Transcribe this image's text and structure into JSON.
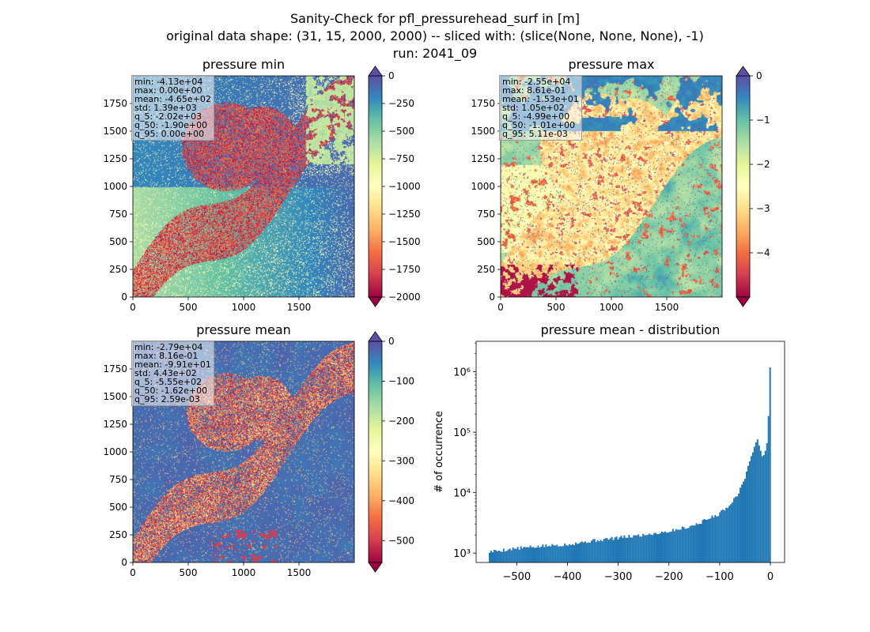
{
  "suptitle": {
    "line1": "Sanity-Check for pfl_pressurehead_surf in [m]",
    "line2": "original data shape: (31, 15, 2000, 2000) -- sliced with: (slice(None, None, None), -1)",
    "line3": "run: 2041_09"
  },
  "colors": {
    "spectral": [
      "#9e0142",
      "#d53e4f",
      "#f46d43",
      "#fdae61",
      "#fee08b",
      "#ffffbf",
      "#e6f598",
      "#abdda4",
      "#66c2a5",
      "#3288bd",
      "#5e4fa2"
    ],
    "hist_bar": "#1f77b4"
  },
  "panels": {
    "min": {
      "title": "pressure min",
      "stats": [
        "min: -4.13e+04",
        "max: 0.00e+00",
        "mean: -4.65e+02",
        "std: 1.39e+03",
        "q_5: -2.02e+03",
        "q_50: -1.90e+00",
        "q_95: 0.00e+00"
      ],
      "colorbar": {
        "vmin": -2000,
        "vmax": 0,
        "ticks": [
          0,
          -250,
          -500,
          -750,
          -1000,
          -1250,
          -1500,
          -1750,
          -2000
        ],
        "tick_labels": [
          "0",
          "−250",
          "−500",
          "−750",
          "−1000",
          "−1250",
          "−1500",
          "−1750",
          "−2000"
        ]
      }
    },
    "max": {
      "title": "pressure max",
      "stats": [
        "min: -2.55e+04",
        "max: 8.61e-01",
        "mean: -1.53e+01",
        "std: 1.05e+02",
        "q_5: -4.99e+00",
        "q_50: -1.01e+00",
        "q_95: 5.11e-03"
      ],
      "colorbar": {
        "vmin": -5,
        "vmax": 0,
        "ticks": [
          0,
          -1,
          -2,
          -3,
          -4
        ],
        "tick_labels": [
          "0",
          "−1",
          "−2",
          "−3",
          "−4"
        ]
      }
    },
    "mean": {
      "title": "pressure mean",
      "stats": [
        "min: -2.79e+04",
        "max: 8.16e-01",
        "mean: -9.91e+01",
        "std: 4.43e+02",
        "q_5: -5.55e+02",
        "q_50: -1.62e+00",
        "q_95: 2.59e-03"
      ],
      "colorbar": {
        "vmin": -555,
        "vmax": 0,
        "ticks": [
          0,
          -100,
          -200,
          -300,
          -400,
          -500
        ],
        "tick_labels": [
          "0",
          "−100",
          "−200",
          "−300",
          "−400",
          "−500"
        ]
      }
    },
    "hist": {
      "title": "pressure mean - distribution",
      "ylabel": "# of occurrence"
    }
  },
  "map_axes": {
    "xlim": [
      0,
      2000
    ],
    "ylim": [
      0,
      2000
    ],
    "xticks": [
      0,
      500,
      1000,
      1500
    ],
    "xtick_labels": [
      "0",
      "500",
      "1000",
      "1500"
    ],
    "yticks": [
      0,
      250,
      500,
      750,
      1000,
      1250,
      1500,
      1750
    ],
    "ytick_labels": [
      "0",
      "250",
      "500",
      "750",
      "1000",
      "1250",
      "1500",
      "1750"
    ]
  },
  "chart_data": [
    {
      "type": "heatmap",
      "title": "pressure min",
      "xlim": [
        0,
        2000
      ],
      "ylim": [
        0,
        2000
      ],
      "colormap": "Spectral",
      "vmin": -2000,
      "vmax": 0,
      "colorbar_extend": "both"
    },
    {
      "type": "heatmap",
      "title": "pressure max",
      "xlim": [
        0,
        2000
      ],
      "ylim": [
        0,
        2000
      ],
      "colormap": "Spectral",
      "vmin": -5,
      "vmax": 0,
      "colorbar_extend": "both"
    },
    {
      "type": "heatmap",
      "title": "pressure mean",
      "xlim": [
        0,
        2000
      ],
      "ylim": [
        0,
        2000
      ],
      "colormap": "Spectral",
      "vmin": -555,
      "vmax": 0,
      "colorbar_extend": "both"
    },
    {
      "type": "bar",
      "title": "pressure mean - distribution",
      "ylabel": "# of occurrence",
      "xlabel": "",
      "yscale": "log",
      "xlim": [
        -580,
        28
      ],
      "ylim": [
        700,
        3200000
      ],
      "xticks": [
        -500,
        -400,
        -300,
        -200,
        -100,
        0
      ],
      "xtick_labels": [
        "−500",
        "−400",
        "−300",
        "−200",
        "−100",
        "0"
      ],
      "yticks": [
        1000,
        10000,
        100000,
        1000000
      ],
      "ytick_labels": [
        "10³",
        "10⁴",
        "10⁵",
        "10⁶"
      ],
      "bins": {
        "start": -555,
        "end": 1,
        "count": 180
      },
      "profile_points": [
        [
          -555,
          1050
        ],
        [
          -500,
          1200
        ],
        [
          -450,
          1300
        ],
        [
          -400,
          1400
        ],
        [
          -350,
          1600
        ],
        [
          -300,
          1800
        ],
        [
          -250,
          2000
        ],
        [
          -200,
          2300
        ],
        [
          -150,
          2900
        ],
        [
          -100,
          4500
        ],
        [
          -75,
          7000
        ],
        [
          -60,
          11000
        ],
        [
          -50,
          18000
        ],
        [
          -40,
          35000
        ],
        [
          -30,
          60000
        ],
        [
          -25,
          75000
        ],
        [
          -20,
          55000
        ],
        [
          -15,
          40000
        ],
        [
          -10,
          45000
        ],
        [
          -5,
          90000
        ],
        [
          -3,
          240000
        ],
        [
          -1,
          2200000
        ],
        [
          0.5,
          250000
        ]
      ]
    }
  ]
}
